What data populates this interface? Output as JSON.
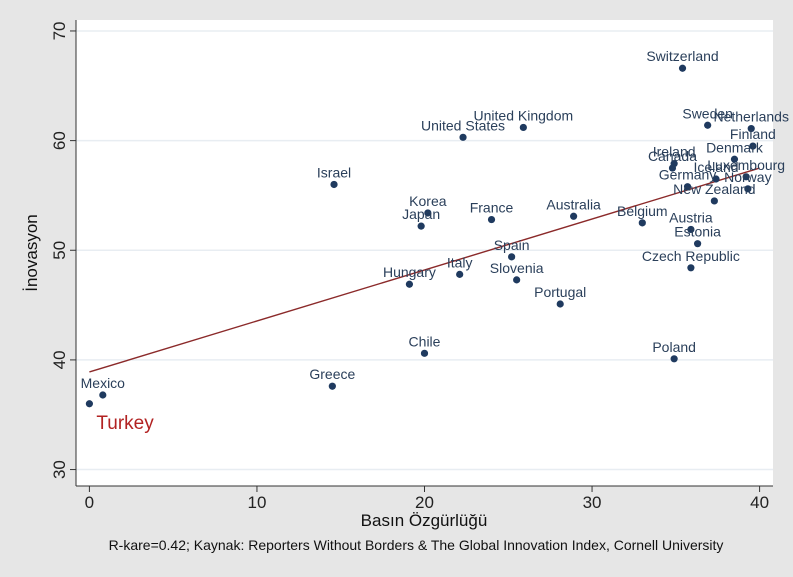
{
  "chart_data": {
    "type": "scatter",
    "title": "",
    "xlabel": "Basın Özgürlüğü",
    "ylabel": "İnovasyon",
    "xlim": [
      -0.8,
      40.8
    ],
    "ylim": [
      28.5,
      71
    ],
    "x_ticks": [
      0,
      10,
      20,
      30,
      40
    ],
    "y_ticks": [
      30,
      40,
      50,
      60,
      70
    ],
    "grid": true,
    "caption": "R-kare=0.42; Kaynak: Reporters Without Borders & The Global Innovation Index, Cornell University",
    "trendline": {
      "x": [
        0,
        40
      ],
      "y": [
        38.9,
        57.5
      ]
    },
    "highlight": {
      "label": "Turkey",
      "color": "#b22222",
      "x": 0,
      "y": 36.0
    },
    "points": [
      {
        "label": "Mexico",
        "x": 0.8,
        "y": 36.8,
        "pos": "top"
      },
      {
        "label": "Greece",
        "x": 14.5,
        "y": 37.6,
        "pos": "top"
      },
      {
        "label": "Chile",
        "x": 20.0,
        "y": 40.6,
        "pos": "top"
      },
      {
        "label": "Israel",
        "x": 14.6,
        "y": 56.0,
        "pos": "top"
      },
      {
        "label": "Korea",
        "x": 20.2,
        "y": 53.4,
        "pos": "top"
      },
      {
        "label": "Japan",
        "x": 19.8,
        "y": 52.2,
        "pos": "top"
      },
      {
        "label": "Hungary",
        "x": 19.1,
        "y": 46.9,
        "pos": "top"
      },
      {
        "label": "Italy",
        "x": 22.1,
        "y": 47.8,
        "pos": "top"
      },
      {
        "label": "United States",
        "x": 22.3,
        "y": 60.3,
        "pos": "top"
      },
      {
        "label": "United Kingdom",
        "x": 25.9,
        "y": 61.2,
        "pos": "top"
      },
      {
        "label": "France",
        "x": 24.0,
        "y": 52.8,
        "pos": "top"
      },
      {
        "label": "Spain",
        "x": 25.2,
        "y": 49.4,
        "pos": "top"
      },
      {
        "label": "Slovenia",
        "x": 25.5,
        "y": 47.3,
        "pos": "top"
      },
      {
        "label": "Portugal",
        "x": 28.1,
        "y": 45.1,
        "pos": "top"
      },
      {
        "label": "Australia",
        "x": 28.9,
        "y": 53.1,
        "pos": "top"
      },
      {
        "label": "Belgium",
        "x": 33.0,
        "y": 52.5,
        "pos": "top"
      },
      {
        "label": "Poland",
        "x": 34.9,
        "y": 40.1,
        "pos": "top"
      },
      {
        "label": "Switzerland",
        "x": 35.4,
        "y": 66.6,
        "pos": "top"
      },
      {
        "label": "Austria",
        "x": 35.9,
        "y": 51.9,
        "pos": "top"
      },
      {
        "label": "Estonia",
        "x": 36.3,
        "y": 50.6,
        "pos": "top"
      },
      {
        "label": "Czech Republic",
        "x": 35.9,
        "y": 48.4,
        "pos": "top"
      },
      {
        "label": "Ireland",
        "x": 34.9,
        "y": 57.9,
        "pos": "top"
      },
      {
        "label": "Canada",
        "x": 34.8,
        "y": 57.5,
        "pos": "top"
      },
      {
        "label": "Germany",
        "x": 35.7,
        "y": 55.8,
        "pos": "top"
      },
      {
        "label": "New Zealand",
        "x": 37.3,
        "y": 54.5,
        "pos": "top"
      },
      {
        "label": "Sweden",
        "x": 36.9,
        "y": 61.4,
        "pos": "top"
      },
      {
        "label": "Netherlands",
        "x": 39.5,
        "y": 61.1,
        "pos": "top"
      },
      {
        "label": "Finland",
        "x": 39.6,
        "y": 59.5,
        "pos": "top"
      },
      {
        "label": "Denmark",
        "x": 38.5,
        "y": 58.3,
        "pos": "top"
      },
      {
        "label": "Iceland",
        "x": 37.4,
        "y": 56.5,
        "pos": "top"
      },
      {
        "label": "Luxembourg",
        "x": 39.2,
        "y": 56.7,
        "pos": "top"
      },
      {
        "label": "Norway",
        "x": 39.3,
        "y": 55.6,
        "pos": "top"
      }
    ]
  }
}
